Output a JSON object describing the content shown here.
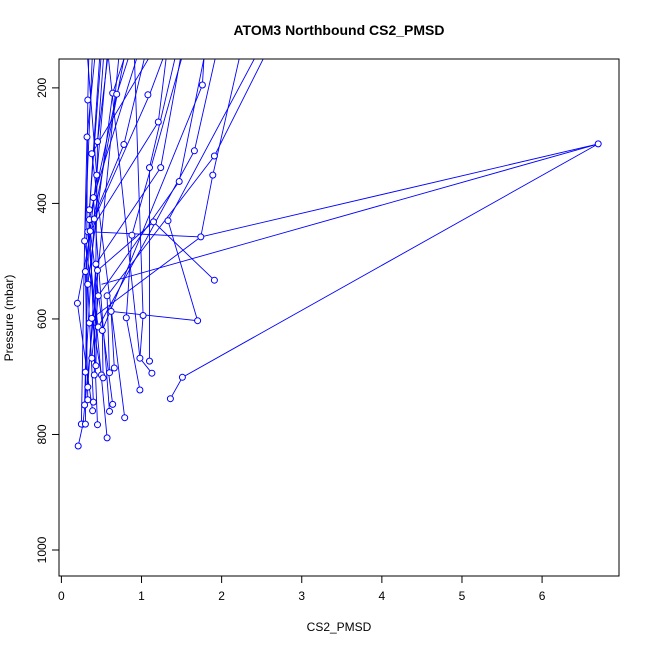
{
  "chart_data": {
    "type": "line",
    "title": "ATOM3 Northbound CS2_PMSD",
    "xlabel": "CS2_PMSD",
    "ylabel": "Pressure (mbar)",
    "xlim": [
      -0.03,
      6.96
    ],
    "ylim": [
      1045,
      150
    ],
    "y_reversed": true,
    "x_ticks": [
      0,
      1,
      2,
      3,
      4,
      5,
      6
    ],
    "y_ticks": [
      200,
      400,
      600,
      800,
      1000
    ],
    "grid": false,
    "legend": "none",
    "series_color": "#0000ff",
    "marker": "open-circle",
    "points": [
      {
        "x": 0.21,
        "y": 820
      },
      {
        "x": 0.27,
        "y": 782
      },
      {
        "x": 0.25,
        "y": 782
      },
      {
        "x": 0.3,
        "y": 782
      },
      {
        "x": 0.29,
        "y": 465
      },
      {
        "x": 0.32,
        "y": 285
      },
      {
        "x": 0.33,
        "y": 221
      },
      {
        "x": 0.35,
        "y": 411
      },
      {
        "x": 0.3,
        "y": 518
      },
      {
        "x": 0.2,
        "y": 573
      },
      {
        "x": 0.33,
        "y": 540
      },
      {
        "x": 0.35,
        "y": 428
      },
      {
        "x": 0.33,
        "y": 449
      },
      {
        "x": 0.4,
        "y": 390
      },
      {
        "x": 0.36,
        "y": 448
      },
      {
        "x": 0.38,
        "y": 314
      },
      {
        "x": 0.44,
        "y": 351
      },
      {
        "x": 0.41,
        "y": 427
      },
      {
        "x": 0.43,
        "y": 505
      },
      {
        "x": 0.45,
        "y": 293
      },
      {
        "x": 0.45,
        "y": 516
      },
      {
        "x": 0.46,
        "y": 560
      },
      {
        "x": 0.35,
        "y": 607
      },
      {
        "x": 0.38,
        "y": 599
      },
      {
        "x": 0.46,
        "y": 614
      },
      {
        "x": 0.38,
        "y": 668
      },
      {
        "x": 0.43,
        "y": 681
      },
      {
        "x": 0.41,
        "y": 697
      },
      {
        "x": 0.3,
        "y": 692
      },
      {
        "x": 0.33,
        "y": 718
      },
      {
        "x": 0.29,
        "y": 749
      },
      {
        "x": 0.33,
        "y": 740
      },
      {
        "x": 0.4,
        "y": 744
      },
      {
        "x": 0.39,
        "y": 759
      },
      {
        "x": 0.45,
        "y": 783
      },
      {
        "x": 0.57,
        "y": 806
      },
      {
        "x": 0.6,
        "y": 760
      },
      {
        "x": 0.5,
        "y": 697
      },
      {
        "x": 0.52,
        "y": 702
      },
      {
        "x": 0.6,
        "y": 693
      },
      {
        "x": 0.66,
        "y": 685
      },
      {
        "x": 0.64,
        "y": 748
      },
      {
        "x": 0.79,
        "y": 771
      },
      {
        "x": 0.62,
        "y": 587
      },
      {
        "x": 0.51,
        "y": 620
      },
      {
        "x": 0.57,
        "y": 560
      },
      {
        "x": 0.81,
        "y": 598
      },
      {
        "x": 0.64,
        "y": 209
      },
      {
        "x": 0.69,
        "y": 211
      },
      {
        "x": 0.78,
        "y": 298
      },
      {
        "x": 0.88,
        "y": 455
      },
      {
        "x": 0.98,
        "y": 668
      },
      {
        "x": 1.02,
        "y": 594
      },
      {
        "x": 0.98,
        "y": 723
      },
      {
        "x": 1.1,
        "y": 673
      },
      {
        "x": 1.08,
        "y": 212
      },
      {
        "x": 1.1,
        "y": 338
      },
      {
        "x": 1.13,
        "y": 694
      },
      {
        "x": 1.15,
        "y": 432
      },
      {
        "x": 1.21,
        "y": 259
      },
      {
        "x": 1.24,
        "y": 338
      },
      {
        "x": 1.33,
        "y": 430
      },
      {
        "x": 1.36,
        "y": 738
      },
      {
        "x": 1.47,
        "y": 362
      },
      {
        "x": 1.51,
        "y": 701
      },
      {
        "x": 1.66,
        "y": 309
      },
      {
        "x": 1.7,
        "y": 603
      },
      {
        "x": 1.74,
        "y": 458
      },
      {
        "x": 1.76,
        "y": 195
      },
      {
        "x": 1.89,
        "y": 351
      },
      {
        "x": 1.91,
        "y": 533
      },
      {
        "x": 1.91,
        "y": 318
      },
      {
        "x": 6.7,
        "y": 297
      }
    ],
    "profiles": [
      [
        [
          0.21,
          820
        ],
        [
          0.27,
          782
        ],
        [
          0.75,
          100
        ]
      ],
      [
        [
          0.25,
          782
        ],
        [
          0.29,
          465
        ],
        [
          0.32,
          285
        ],
        [
          0.45,
          100
        ]
      ],
      [
        [
          0.3,
          782
        ],
        [
          0.33,
          221
        ],
        [
          0.35,
          100
        ]
      ],
      [
        [
          0.29,
          749
        ],
        [
          0.35,
          411
        ],
        [
          0.52,
          100
        ]
      ],
      [
        [
          0.33,
          740
        ],
        [
          0.3,
          518
        ],
        [
          0.44,
          351
        ],
        [
          0.6,
          100
        ]
      ],
      [
        [
          0.39,
          759
        ],
        [
          0.2,
          573
        ],
        [
          0.85,
          100
        ]
      ],
      [
        [
          0.4,
          744
        ],
        [
          0.33,
          540
        ],
        [
          0.64,
          209
        ],
        [
          0.9,
          100
        ]
      ],
      [
        [
          0.45,
          783
        ],
        [
          0.35,
          428
        ],
        [
          0.69,
          211
        ],
        [
          0.95,
          100
        ]
      ],
      [
        [
          0.57,
          806
        ],
        [
          0.33,
          449
        ],
        [
          0.78,
          298
        ],
        [
          1.12,
          100
        ]
      ],
      [
        [
          0.6,
          760
        ],
        [
          0.4,
          390
        ],
        [
          1.05,
          100
        ]
      ],
      [
        [
          0.64,
          748
        ],
        [
          0.36,
          448
        ],
        [
          1.21,
          259
        ],
        [
          1.35,
          100
        ]
      ],
      [
        [
          0.79,
          771
        ],
        [
          0.38,
          314
        ],
        [
          1.3,
          100
        ]
      ],
      [
        [
          0.3,
          692
        ],
        [
          0.41,
          427
        ],
        [
          1.1,
          212
        ],
        [
          1.4,
          100
        ]
      ],
      [
        [
          0.33,
          718
        ],
        [
          0.43,
          505
        ],
        [
          1.24,
          338
        ],
        [
          1.55,
          100
        ]
      ],
      [
        [
          0.41,
          697
        ],
        [
          0.45,
          293
        ],
        [
          0.55,
          100
        ]
      ],
      [
        [
          0.43,
          681
        ],
        [
          0.45,
          516
        ],
        [
          1.15,
          432
        ],
        [
          1.91,
          533
        ]
      ],
      [
        [
          0.38,
          668
        ],
        [
          0.46,
          560
        ],
        [
          1.47,
          362
        ],
        [
          1.85,
          100
        ]
      ],
      [
        [
          0.35,
          607
        ],
        [
          0.46,
          614
        ],
        [
          1.66,
          309
        ],
        [
          2.0,
          100
        ]
      ],
      [
        [
          0.5,
          697
        ],
        [
          0.38,
          599
        ],
        [
          1.74,
          458
        ],
        [
          1.89,
          351
        ],
        [
          2.3,
          100
        ]
      ],
      [
        [
          0.52,
          702
        ],
        [
          0.51,
          620
        ],
        [
          1.76,
          195
        ],
        [
          1.8,
          100
        ]
      ],
      [
        [
          0.6,
          693
        ],
        [
          0.57,
          560
        ],
        [
          1.91,
          318
        ],
        [
          2.7,
          100
        ]
      ],
      [
        [
          0.66,
          685
        ],
        [
          0.62,
          587
        ],
        [
          1.7,
          603
        ],
        [
          1.33,
          430
        ],
        [
          2.6,
          100
        ]
      ],
      [
        [
          0.98,
          723
        ],
        [
          0.81,
          598
        ],
        [
          0.88,
          455
        ],
        [
          1.6,
          100
        ]
      ],
      [
        [
          0.98,
          668
        ],
        [
          1.02,
          594
        ],
        [
          0.9,
          100
        ]
      ],
      [
        [
          1.1,
          673
        ],
        [
          1.1,
          338
        ],
        [
          1.5,
          100
        ]
      ],
      [
        [
          1.13,
          694
        ],
        [
          0.98,
          668
        ],
        [
          0.55,
          100
        ]
      ],
      [
        [
          1.36,
          738
        ],
        [
          1.51,
          701
        ],
        [
          6.7,
          297
        ],
        [
          0.5,
          540
        ]
      ],
      [
        [
          0.46,
          614
        ],
        [
          0.29,
          465
        ],
        [
          0.4,
          100
        ]
      ],
      [
        [
          0.33,
          449
        ],
        [
          1.74,
          458
        ],
        [
          6.7,
          297
        ]
      ],
      [
        [
          0.44,
          351
        ],
        [
          0.3,
          100
        ]
      ],
      [
        [
          0.35,
          411
        ],
        [
          0.5,
          100
        ]
      ],
      [
        [
          0.45,
          293
        ],
        [
          0.62,
          100
        ]
      ]
    ]
  }
}
